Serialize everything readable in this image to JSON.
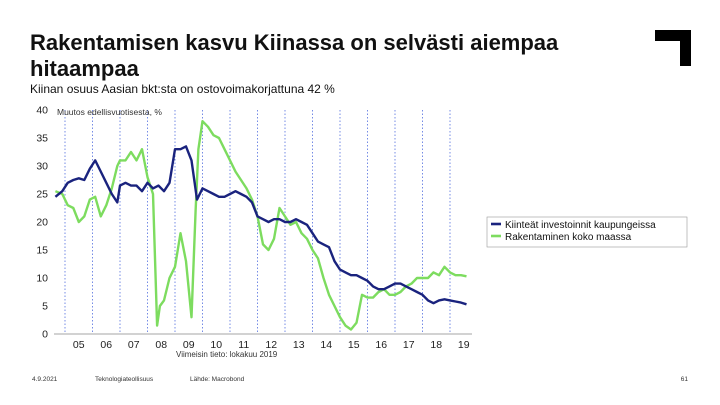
{
  "title": "Rakentamisen kasvu Kiinassa on selvästi aiempaa hitaampaa",
  "subtitle": "Kiinan osuus Aasian bkt:sta on ostovoimakorjattuna 42 %",
  "footer": {
    "date": "4.9.2021",
    "org": "Teknologiateollisuus",
    "source": "Lähde: Macrobond",
    "page": "61"
  },
  "colors": {
    "navy": "#1a237e",
    "green": "#7ddc5f",
    "logo": "#000000"
  },
  "chart_data": {
    "type": "line",
    "title": "",
    "ylabel": "Muutos edellisvuotisesta, %",
    "xlabel": "",
    "note": "Viimeisin tieto: lokakuu 2019",
    "ylim": [
      0,
      40
    ],
    "xlim": [
      2004.6,
      2019.8
    ],
    "yticks": [
      0,
      5,
      10,
      15,
      20,
      25,
      30,
      35,
      40
    ],
    "xtick_labels": [
      "05",
      "06",
      "07",
      "08",
      "09",
      "10",
      "11",
      "12",
      "13",
      "14",
      "15",
      "16",
      "17",
      "18",
      "19"
    ],
    "xtick_positions": [
      2005.5,
      2006.5,
      2007.5,
      2008.5,
      2009.5,
      2010.5,
      2011.5,
      2012.5,
      2013.5,
      2014.5,
      2015.5,
      2016.5,
      2017.5,
      2018.5,
      2019.5
    ],
    "legend_position": "right",
    "grid": "vertical dotted",
    "series": [
      {
        "name": "Kiinteät investoinnit kaupungeissa",
        "color": "#1a237e",
        "x": [
          2004.65,
          2004.9,
          2005.1,
          2005.3,
          2005.5,
          2005.7,
          2005.9,
          2006.1,
          2006.3,
          2006.5,
          2006.7,
          2006.9,
          2007.0,
          2007.2,
          2007.4,
          2007.6,
          2007.8,
          2008.0,
          2008.2,
          2008.4,
          2008.6,
          2008.8,
          2009.0,
          2009.2,
          2009.4,
          2009.6,
          2009.8,
          2010.0,
          2010.2,
          2010.4,
          2010.6,
          2010.8,
          2011.0,
          2011.2,
          2011.4,
          2011.6,
          2011.8,
          2012.0,
          2012.2,
          2012.4,
          2012.6,
          2012.8,
          2013.0,
          2013.2,
          2013.4,
          2013.6,
          2013.8,
          2014.0,
          2014.2,
          2014.4,
          2014.6,
          2014.8,
          2015.0,
          2015.2,
          2015.4,
          2015.6,
          2015.8,
          2016.0,
          2016.2,
          2016.4,
          2016.6,
          2016.8,
          2017.0,
          2017.2,
          2017.4,
          2017.6,
          2017.8,
          2018.0,
          2018.2,
          2018.4,
          2018.6,
          2018.8,
          2019.0,
          2019.2,
          2019.4,
          2019.6
        ],
        "values": [
          24.5,
          25.5,
          27,
          27.5,
          27.8,
          27.5,
          29.5,
          31,
          29,
          27,
          25,
          23.5,
          26.5,
          27,
          26.5,
          26.5,
          25.5,
          27,
          26,
          26.5,
          25.5,
          27,
          33,
          33,
          33.5,
          31,
          24,
          26,
          25.5,
          25,
          24.5,
          24.5,
          25,
          25.5,
          25,
          24.5,
          23.5,
          21,
          20.5,
          20,
          20.5,
          20.5,
          20,
          20,
          20.5,
          20,
          19.5,
          18,
          16.5,
          16,
          15.5,
          13,
          11.5,
          11,
          10.5,
          10.5,
          10,
          9.5,
          8.5,
          8,
          8,
          8.5,
          9,
          9,
          8.5,
          8,
          7.5,
          7,
          6,
          5.5,
          6,
          6.2,
          6,
          5.8,
          5.6,
          5.3
        ]
      },
      {
        "name": "Rakentaminen koko maassa",
        "color": "#7ddc5f",
        "x": [
          2004.65,
          2004.9,
          2005.1,
          2005.3,
          2005.5,
          2005.7,
          2005.9,
          2006.1,
          2006.3,
          2006.5,
          2006.7,
          2006.9,
          2007.0,
          2007.2,
          2007.4,
          2007.6,
          2007.8,
          2008.0,
          2008.2,
          2008.35,
          2008.45,
          2008.6,
          2008.8,
          2009.0,
          2009.2,
          2009.4,
          2009.6,
          2009.75,
          2009.85,
          2010.0,
          2010.2,
          2010.4,
          2010.6,
          2010.8,
          2011.0,
          2011.2,
          2011.4,
          2011.6,
          2011.8,
          2012.0,
          2012.2,
          2012.4,
          2012.6,
          2012.8,
          2013.0,
          2013.2,
          2013.4,
          2013.6,
          2013.8,
          2014.0,
          2014.2,
          2014.4,
          2014.6,
          2014.8,
          2015.0,
          2015.2,
          2015.4,
          2015.6,
          2015.8,
          2016.0,
          2016.2,
          2016.4,
          2016.6,
          2016.8,
          2017.0,
          2017.2,
          2017.4,
          2017.6,
          2017.8,
          2018.0,
          2018.2,
          2018.4,
          2018.6,
          2018.8,
          2019.0,
          2019.2,
          2019.4,
          2019.6
        ],
        "values": [
          25.5,
          25,
          23,
          22.5,
          20,
          21,
          24,
          24.5,
          21,
          23,
          26,
          30,
          31,
          31,
          32.5,
          31,
          33,
          28,
          25,
          1.5,
          5,
          6,
          10,
          12,
          18,
          13,
          3,
          22,
          33,
          38,
          37,
          35.5,
          35,
          33,
          31,
          29,
          27.5,
          26,
          24,
          21,
          16,
          15,
          17,
          22.5,
          21,
          19.5,
          20,
          18,
          17,
          15,
          13.5,
          10,
          7,
          5,
          3,
          1.5,
          0.8,
          2,
          7,
          6.5,
          6.5,
          7.5,
          8,
          7,
          7,
          7.5,
          8.5,
          9,
          10,
          10,
          10,
          11,
          10.5,
          12,
          11,
          10.5,
          10.5,
          10.3
        ]
      }
    ]
  }
}
